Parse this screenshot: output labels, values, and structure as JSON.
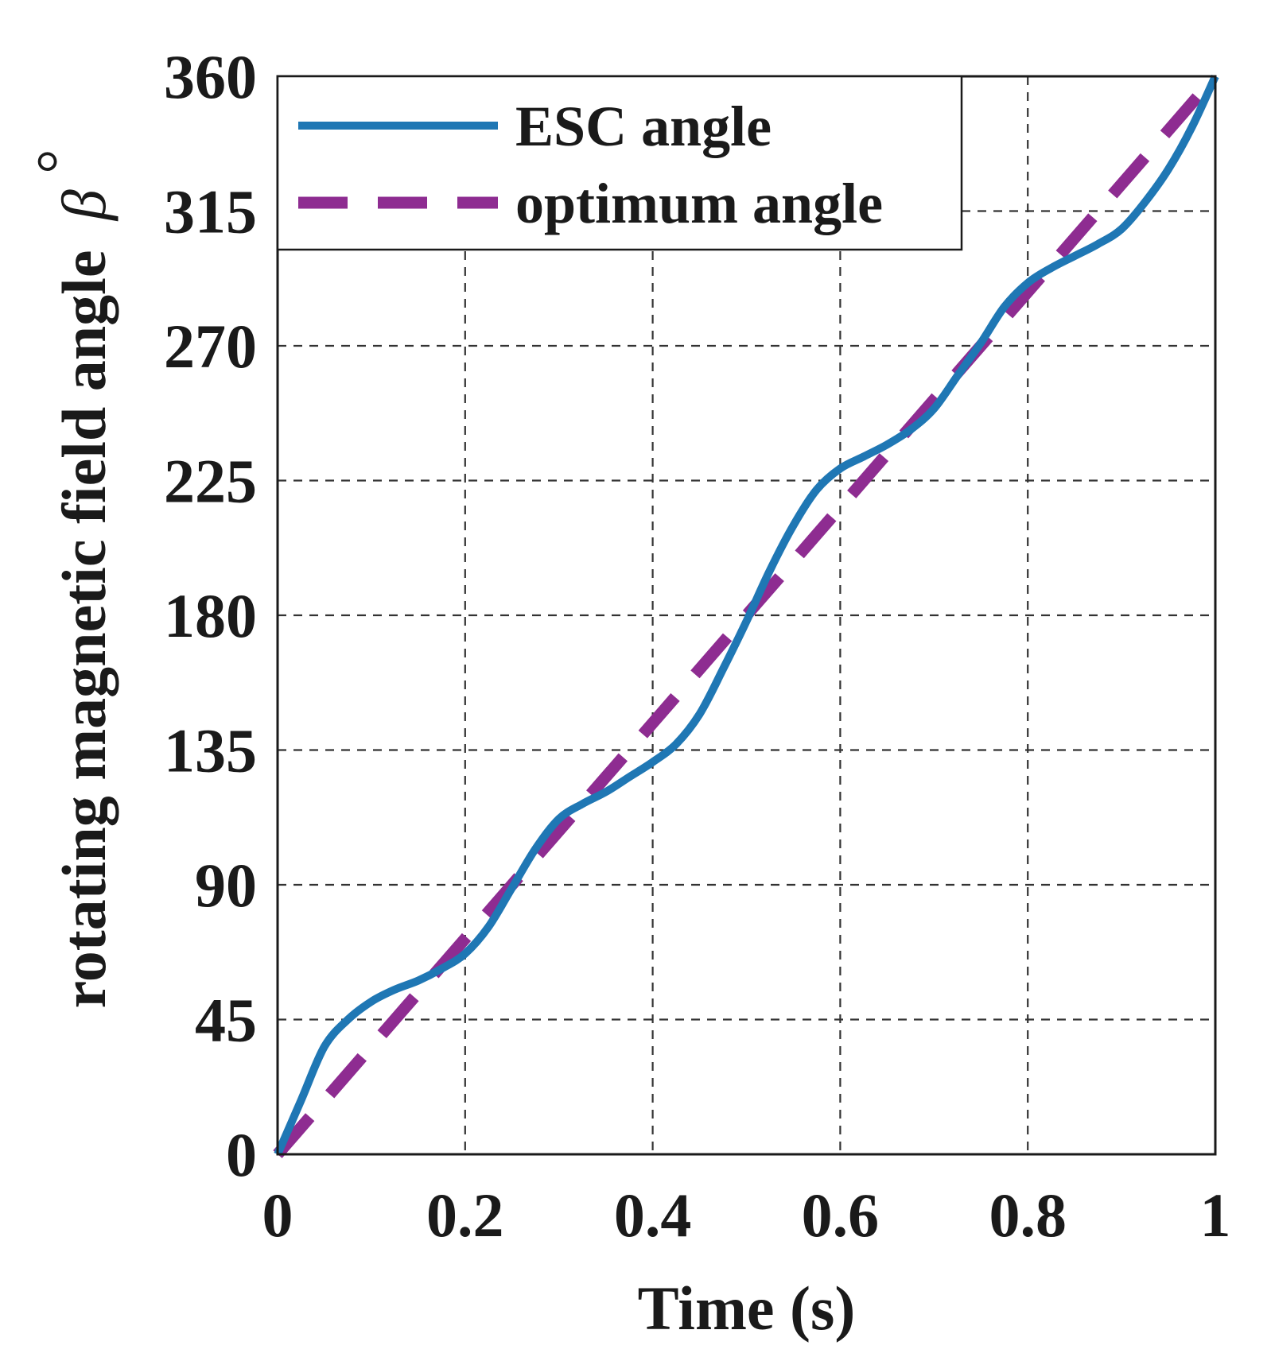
{
  "chart_data": {
    "type": "line",
    "title": "",
    "xlabel": "Time (s)",
    "ylabel": "rotating magnetic field angle",
    "ylabel_symbol": "β",
    "ylabel_sup": "°",
    "xlim": [
      0,
      1
    ],
    "ylim": [
      0,
      360
    ],
    "xticks": [
      0,
      0.2,
      0.4,
      0.6,
      0.8,
      1
    ],
    "xtick_labels": [
      "0",
      "0.2",
      "0.4",
      "0.6",
      "0.8",
      "1"
    ],
    "yticks": [
      0,
      45,
      90,
      135,
      180,
      225,
      270,
      315,
      360
    ],
    "ytick_labels": [
      "0",
      "45",
      "90",
      "135",
      "180",
      "225",
      "270",
      "315",
      "360"
    ],
    "grid": true,
    "legend_position": "top-left",
    "series": [
      {
        "name": "ESC angle",
        "color": "#1f77b4",
        "style": "solid",
        "x": [
          0,
          0.025,
          0.05,
          0.075,
          0.1,
          0.125,
          0.15,
          0.175,
          0.2,
          0.225,
          0.25,
          0.275,
          0.3,
          0.325,
          0.35,
          0.375,
          0.4,
          0.425,
          0.45,
          0.475,
          0.5,
          0.525,
          0.55,
          0.575,
          0.6,
          0.625,
          0.65,
          0.675,
          0.7,
          0.725,
          0.75,
          0.775,
          0.8,
          0.825,
          0.85,
          0.875,
          0.9,
          0.925,
          0.95,
          0.975,
          1.0
        ],
        "y": [
          0,
          18,
          36,
          45,
          51,
          55,
          58,
          62,
          67,
          76,
          89,
          102,
          112,
          117,
          121,
          126,
          131,
          137,
          147,
          162,
          178,
          195,
          210,
          222,
          229,
          233,
          237,
          242,
          249,
          260,
          271,
          283,
          291,
          296,
          300,
          304,
          309,
          318,
          329,
          343,
          360
        ]
      },
      {
        "name": "optimum angle",
        "color": "#8e2c91",
        "style": "dashed",
        "x": [
          0,
          1
        ],
        "y": [
          0,
          360
        ]
      }
    ]
  }
}
